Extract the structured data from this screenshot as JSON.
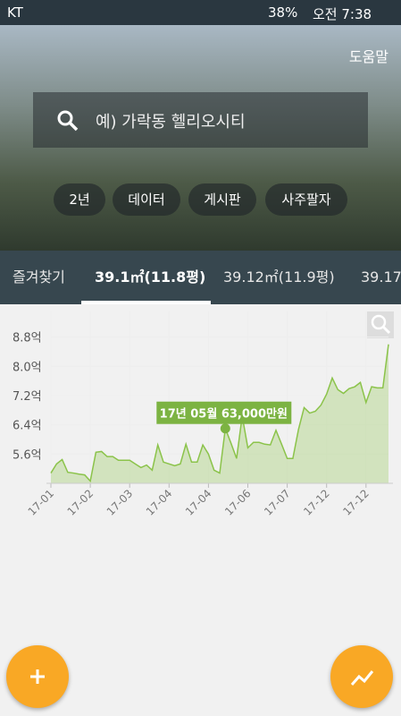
{
  "status_bar": {
    "carrier": "KT",
    "battery": "38%",
    "time": "오전 7:38"
  },
  "header": {
    "help": "도움말",
    "search_placeholder": "예) 가락동 헬리오시티",
    "chips": [
      "2년",
      "데이터",
      "게시판",
      "사주팔자"
    ]
  },
  "tabs": [
    "즐겨찾기",
    "39.1㎡(11.8평)",
    "39.12㎡(11.9평)",
    "39.17"
  ],
  "chart_data": {
    "type": "line",
    "color": "#8bc34a",
    "categories": [
      "17-01",
      null,
      null,
      null,
      null,
      null,
      null,
      "17-02",
      null,
      null,
      null,
      null,
      null,
      null,
      "17-03",
      null,
      null,
      null,
      null,
      null,
      null,
      "17-04",
      null,
      null,
      null,
      null,
      null,
      null,
      "17-04",
      null,
      null,
      null,
      null,
      null,
      null,
      "17-06",
      null,
      null,
      null,
      null,
      null,
      null,
      "17-07",
      null,
      null,
      null,
      null,
      null,
      null,
      "17-12",
      null,
      null,
      null,
      null,
      null,
      null,
      "17-12",
      null,
      null,
      null,
      null
    ],
    "values": [
      5.08,
      5.33,
      5.45,
      5.1,
      5.08,
      5.05,
      5.03,
      4.86,
      5.65,
      5.67,
      5.53,
      5.53,
      5.43,
      5.43,
      5.43,
      5.33,
      5.23,
      5.3,
      5.16,
      5.85,
      5.38,
      5.33,
      5.28,
      5.33,
      5.87,
      5.38,
      5.38,
      5.85,
      5.6,
      5.16,
      5.08,
      6.3,
      5.9,
      5.48,
      6.64,
      5.77,
      5.92,
      5.92,
      5.87,
      5.85,
      6.25,
      5.87,
      5.48,
      5.48,
      6.27,
      6.87,
      6.72,
      6.77,
      6.94,
      7.24,
      7.68,
      7.36,
      7.26,
      7.39,
      7.44,
      7.56,
      7.01,
      7.44,
      7.41,
      7.41,
      8.6
    ],
    "ylim": [
      4.8,
      9.5
    ],
    "yticks": [
      {
        "value": 5.6,
        "label": "5.6억"
      },
      {
        "value": 6.4,
        "label": "6.4억"
      },
      {
        "value": 7.2,
        "label": "7.2억"
      },
      {
        "value": 8.0,
        "label": "8.0억"
      },
      {
        "value": 8.8,
        "label": "8.8억"
      }
    ],
    "annotation": "17년 05월 63,000만원"
  }
}
